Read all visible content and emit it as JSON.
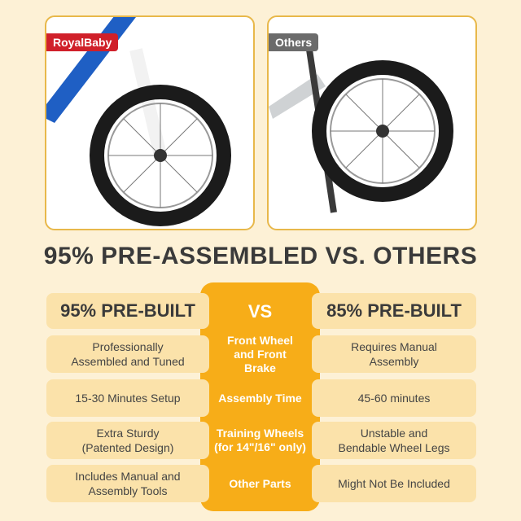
{
  "photos": {
    "left": {
      "label": "RoyalBaby",
      "label_color": "#d0202a"
    },
    "right": {
      "label": "Others",
      "label_color": "#6b6b6b"
    }
  },
  "title": "95% PRE-ASSEMBLED VS. OTHERS",
  "colors": {
    "background": "#fdf1d6",
    "cell": "#fbe2aa",
    "accent": "#f7ad18",
    "border": "#e8b84a"
  },
  "table": {
    "left_header": "95% PRE-BUILT",
    "center_header": "VS",
    "right_header": "85% PRE-BUILT",
    "rows": [
      {
        "left": "Professionally Assembled and Tuned",
        "center": "Front Wheel and Front Brake",
        "right": "Requires Manual Assembly"
      },
      {
        "left": "15-30 Minutes Setup",
        "center": "Assembly Time",
        "right": "45-60 minutes"
      },
      {
        "left": "Extra Sturdy (Patented Design)",
        "center": "Training Wheels (for 14\"/16\" only)",
        "right": "Unstable and Bendable Wheel Legs"
      },
      {
        "left": "Includes Manual and Assembly Tools",
        "center": "Other Parts",
        "right": "Might Not Be Included"
      }
    ]
  }
}
